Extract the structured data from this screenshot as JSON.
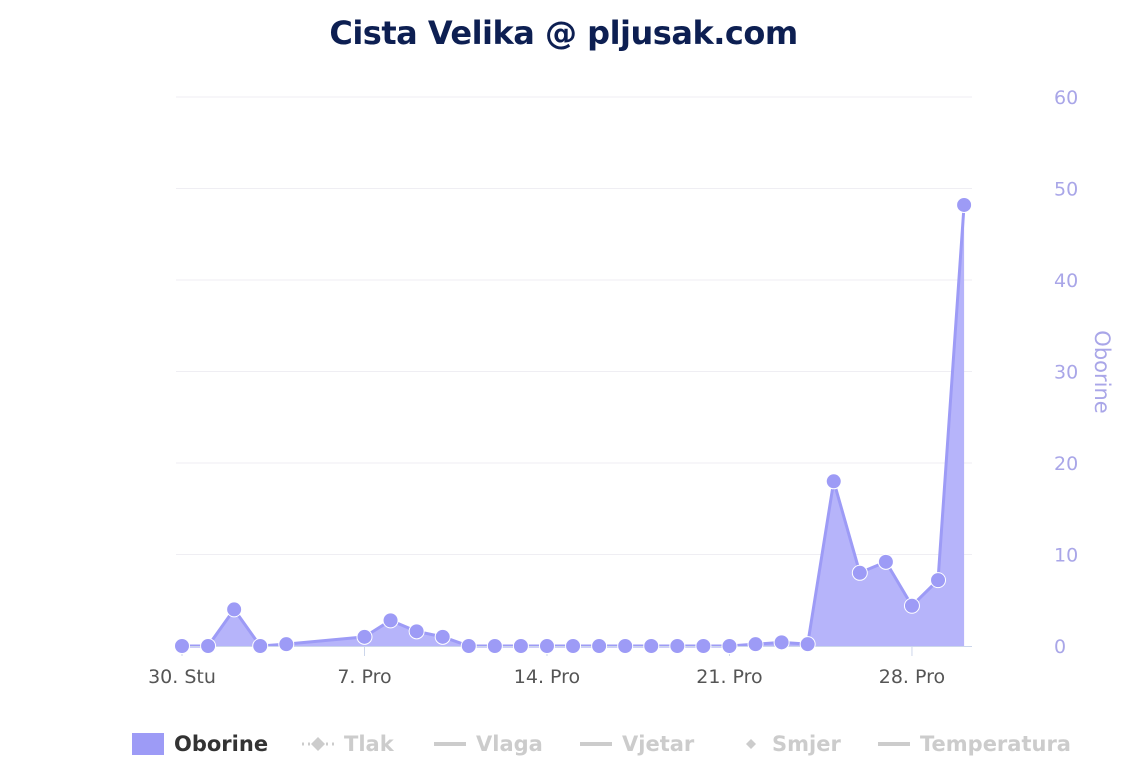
{
  "title": "Cista Velika @ pljusak.com",
  "colors": {
    "series": "#9d9bf6",
    "fill": "#b2b0fa",
    "axis": "#a9a6e8",
    "grid": "#efeef3",
    "inactive": "#cccccc",
    "title": "#0d1f52"
  },
  "chart_data": {
    "type": "area",
    "title": "Cista Velika @ pljusak.com",
    "xlabel": "",
    "ylabel": "Oborine",
    "y_axis_side": "right",
    "ylim": [
      0,
      60
    ],
    "yticks": [
      0,
      10,
      20,
      30,
      40,
      50,
      60
    ],
    "grid": true,
    "legend_position": "bottom",
    "x_tick_labels": [
      {
        "date": "30. Stu",
        "label": "30. Stu"
      },
      {
        "date": "7. Pro",
        "label": "7. Pro"
      },
      {
        "date": "14. Pro",
        "label": "14. Pro"
      },
      {
        "date": "21. Pro",
        "label": "21. Pro"
      },
      {
        "date": "28. Pro",
        "label": "28. Pro"
      }
    ],
    "series": [
      {
        "name": "Oborine",
        "type": "area",
        "points": [
          {
            "x": "30. Stu",
            "y": 0
          },
          {
            "x": "1. Pro",
            "y": 0
          },
          {
            "x": "2. Pro",
            "y": 4
          },
          {
            "x": "3. Pro",
            "y": 0
          },
          {
            "x": "4. Pro",
            "y": 0.2
          },
          {
            "x": "7. Pro",
            "y": 1
          },
          {
            "x": "8. Pro",
            "y": 2.8
          },
          {
            "x": "9. Pro",
            "y": 1.6
          },
          {
            "x": "10. Pro",
            "y": 1
          },
          {
            "x": "11. Pro",
            "y": 0
          },
          {
            "x": "12. Pro",
            "y": 0
          },
          {
            "x": "13. Pro",
            "y": 0
          },
          {
            "x": "14. Pro",
            "y": 0
          },
          {
            "x": "15. Pro",
            "y": 0
          },
          {
            "x": "16. Pro",
            "y": 0
          },
          {
            "x": "17. Pro",
            "y": 0
          },
          {
            "x": "18. Pro",
            "y": 0
          },
          {
            "x": "19. Pro",
            "y": 0
          },
          {
            "x": "20. Pro",
            "y": 0
          },
          {
            "x": "21. Pro",
            "y": 0
          },
          {
            "x": "22. Pro",
            "y": 0.2
          },
          {
            "x": "23. Pro",
            "y": 0.4
          },
          {
            "x": "24. Pro",
            "y": 0.2
          },
          {
            "x": "25. Pro",
            "y": 18
          },
          {
            "x": "26. Pro",
            "y": 8
          },
          {
            "x": "27. Pro",
            "y": 9.2
          },
          {
            "x": "28. Pro",
            "y": 4.4
          },
          {
            "x": "29. Pro",
            "y": 7.2
          },
          {
            "x": "30. Pro",
            "y": 48.2
          }
        ]
      }
    ],
    "legend": [
      {
        "name": "Oborine",
        "active": true,
        "symbol": "area"
      },
      {
        "name": "Tlak",
        "active": false,
        "symbol": "dash-dot-diamond"
      },
      {
        "name": "Vlaga",
        "active": false,
        "symbol": "line"
      },
      {
        "name": "Vjetar",
        "active": false,
        "symbol": "line"
      },
      {
        "name": "Smjer",
        "active": false,
        "symbol": "diamond"
      },
      {
        "name": "Temperatura",
        "active": false,
        "symbol": "line"
      }
    ]
  }
}
